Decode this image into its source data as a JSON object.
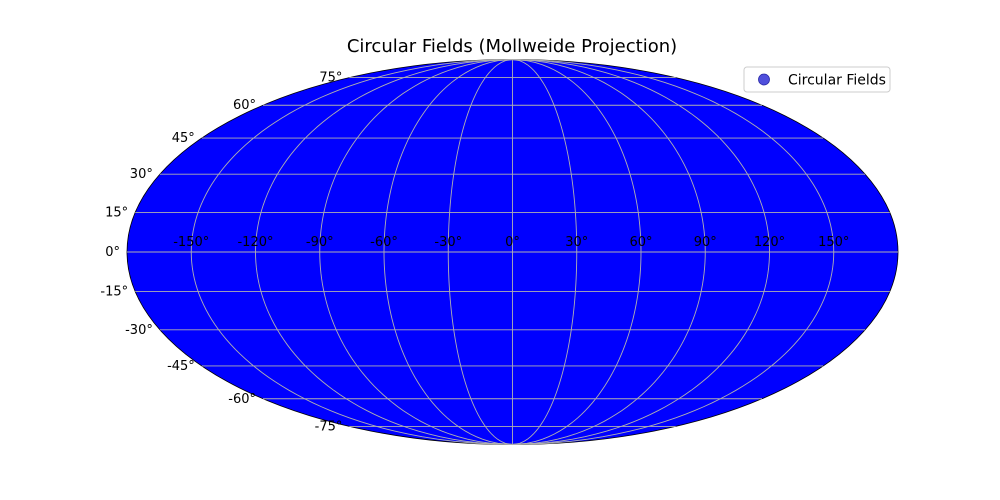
{
  "chart_data": {
    "type": "scatter",
    "projection": "mollweide",
    "title": "Circular Fields (Mollweide Projection)",
    "series": [
      {
        "name": "Circular Fields",
        "marker_color": "#4f4fdc",
        "points": []
      }
    ],
    "fill_color": "#0000ff",
    "grid": true,
    "grid_color": "#b0b0b0",
    "legend_position": "top-right",
    "longitude_ticks": [
      -150,
      -120,
      -90,
      -60,
      -30,
      0,
      30,
      60,
      90,
      120,
      150
    ],
    "latitude_ticks": [
      75,
      60,
      45,
      30,
      15,
      0,
      -15,
      -30,
      -45,
      -60,
      -75
    ],
    "longitude_tick_labels": [
      "-150°",
      "-120°",
      "-90°",
      "-60°",
      "-30°",
      "0°",
      "30°",
      "60°",
      "90°",
      "120°",
      "150°"
    ],
    "latitude_tick_labels": [
      "75°",
      "60°",
      "45°",
      "30°",
      "15°",
      "0°",
      "-15°",
      "-30°",
      "-45°",
      "-60°",
      "-75°"
    ],
    "xlim": [
      -180,
      180
    ],
    "ylim": [
      -90,
      90
    ]
  }
}
